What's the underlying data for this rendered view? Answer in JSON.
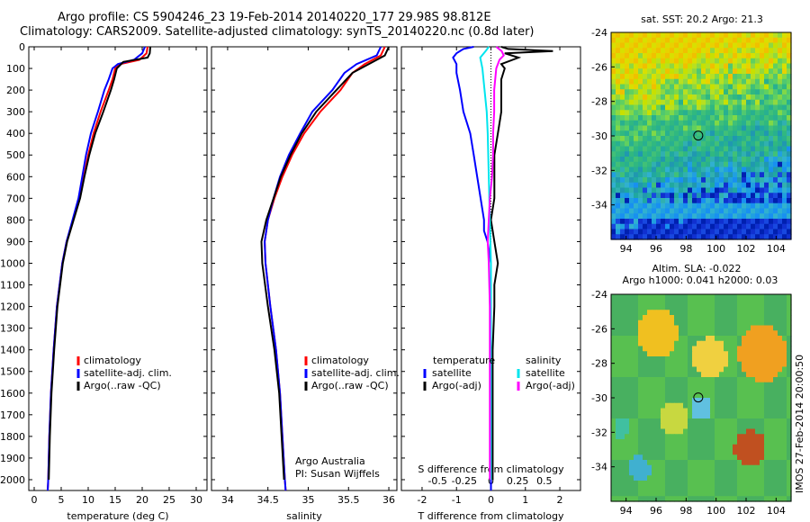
{
  "header": {
    "line1": "Argo profile: CS 5904246_23 19-Feb-2014 20140220_177 29.98S 98.812E",
    "line2": "Climatology: CARS2009. Satellite-adjusted climatology: synTS_20140220.nc (0.8d later)"
  },
  "colors": {
    "climatology": "#ff0000",
    "satellite": "#0000ff",
    "argo": "#000000",
    "salinity_satellite": "#00e5ee",
    "salinity_argo": "#ff00ff"
  },
  "chart_data": [
    {
      "type": "line",
      "name": "temperature",
      "xlabel": "temperature (deg C)",
      "ylabel": "",
      "xlim": [
        -1,
        32
      ],
      "ylim": [
        2050,
        0
      ],
      "xticks": [
        0,
        5,
        10,
        15,
        20,
        25,
        30
      ],
      "yticks": [
        0,
        100,
        200,
        300,
        400,
        500,
        600,
        700,
        800,
        900,
        1000,
        1100,
        1200,
        1300,
        1400,
        1500,
        1600,
        1700,
        1800,
        1900,
        2000
      ],
      "legend": [
        "climatology",
        "satellite-adj. clim.",
        "Argo(..raw -QC)"
      ],
      "series": [
        {
          "name": "climatology",
          "depth": [
            0,
            30,
            60,
            80,
            100,
            150,
            200,
            300,
            400,
            500,
            600,
            700,
            800,
            900,
            1000,
            1200,
            1400,
            1600,
            1800,
            2000,
            2050
          ],
          "values": [
            21.0,
            20.8,
            19.5,
            16.0,
            15.0,
            14.5,
            13.8,
            12.3,
            11.0,
            10.0,
            9.2,
            8.4,
            7.2,
            6.0,
            5.2,
            4.2,
            3.6,
            3.1,
            2.8,
            2.6,
            2.5
          ]
        },
        {
          "name": "satellite-adj. clim.",
          "depth": [
            0,
            30,
            60,
            80,
            100,
            150,
            200,
            300,
            400,
            500,
            600,
            700,
            800,
            900,
            1000,
            1200,
            1400,
            1600,
            1800,
            2000,
            2050
          ],
          "values": [
            20.5,
            20.0,
            18.5,
            15.5,
            14.5,
            13.8,
            13.0,
            11.8,
            10.5,
            9.6,
            8.9,
            8.2,
            7.1,
            6.0,
            5.2,
            4.2,
            3.6,
            3.1,
            2.8,
            2.6,
            2.5
          ]
        },
        {
          "name": "Argo(..raw -QC)",
          "depth": [
            0,
            30,
            50,
            70,
            100,
            150,
            200,
            300,
            400,
            500,
            600,
            700,
            800,
            900,
            1000,
            1200,
            1400,
            1600,
            1800,
            2000
          ],
          "values": [
            21.5,
            21.4,
            21.0,
            16.5,
            15.3,
            14.8,
            14.2,
            12.8,
            11.3,
            10.2,
            9.3,
            8.5,
            7.3,
            6.1,
            5.3,
            4.3,
            3.7,
            3.2,
            2.9,
            2.7
          ]
        }
      ]
    },
    {
      "type": "line",
      "name": "salinity",
      "xlabel": "salinity",
      "xlim": [
        33.8,
        36.1
      ],
      "ylim": [
        2050,
        0
      ],
      "xticks": [
        34,
        34.5,
        35,
        35.5,
        36
      ],
      "legend": [
        "climatology",
        "satellite-adj. clim.",
        "Argo(..raw -QC)"
      ],
      "annotations": [
        "Argo Australia",
        "PI: Susan Wijffels"
      ],
      "series": [
        {
          "name": "climatology",
          "depth": [
            0,
            40,
            80,
            120,
            200,
            300,
            400,
            500,
            600,
            700,
            800,
            900,
            1000,
            1200,
            1400,
            1600,
            1800,
            2000,
            2050
          ],
          "values": [
            35.95,
            35.9,
            35.7,
            35.55,
            35.4,
            35.15,
            34.95,
            34.8,
            34.68,
            34.58,
            34.5,
            34.46,
            34.47,
            34.53,
            34.6,
            34.65,
            34.68,
            34.71,
            34.72
          ]
        },
        {
          "name": "satellite-adj. clim.",
          "depth": [
            0,
            40,
            80,
            120,
            200,
            300,
            400,
            500,
            600,
            700,
            800,
            900,
            1000,
            1200,
            1400,
            1600,
            1800,
            2000,
            2050
          ],
          "values": [
            35.9,
            35.85,
            35.6,
            35.45,
            35.3,
            35.05,
            34.9,
            34.76,
            34.65,
            34.57,
            34.5,
            34.46,
            34.47,
            34.53,
            34.6,
            34.65,
            34.68,
            34.71,
            34.72
          ]
        },
        {
          "name": "Argo(..raw -QC)",
          "depth": [
            0,
            40,
            80,
            120,
            200,
            300,
            400,
            500,
            600,
            700,
            800,
            900,
            1000,
            1200,
            1400,
            1600,
            1800,
            2000
          ],
          "values": [
            36.0,
            35.95,
            35.75,
            35.55,
            35.35,
            35.1,
            34.92,
            34.78,
            34.66,
            34.57,
            34.48,
            34.42,
            34.43,
            34.5,
            34.58,
            34.64,
            34.67,
            34.7
          ]
        }
      ]
    },
    {
      "type": "line",
      "name": "difference",
      "xlabel": "T difference from climatology",
      "x2label": "S difference from climatology",
      "xlim": [
        -2.6,
        2.6
      ],
      "ylim": [
        2050,
        0
      ],
      "xticks": [
        -2,
        -1,
        0,
        1,
        2
      ],
      "x2ticks": [
        "-0.5",
        "-0.25",
        "0",
        "0.25",
        "0.5"
      ],
      "x2tick_values": [
        -0.5,
        -0.25,
        0,
        0.25,
        0.5
      ],
      "legend_titles": [
        "temperature",
        "salinity"
      ],
      "legend": [
        "satellite",
        "Argo(-adj)",
        "satellite",
        "Argo(-adj)"
      ],
      "series": [
        {
          "name": "temperature satellite",
          "depth": [
            0,
            10,
            30,
            50,
            80,
            120,
            200,
            300,
            400,
            500,
            600,
            700,
            800,
            850,
            900,
            1000,
            1100,
            1200,
            1400,
            1600,
            1800,
            2000,
            2050
          ],
          "values": [
            -0.5,
            -0.8,
            -1.0,
            -1.1,
            -1.0,
            -1.0,
            -0.9,
            -0.8,
            -0.6,
            -0.5,
            -0.4,
            -0.3,
            -0.2,
            -0.2,
            -0.1,
            0.0,
            0.0,
            0.0,
            0.0,
            0.0,
            0.0,
            0.0,
            0.0
          ]
        },
        {
          "name": "temperature Argo(-adj)",
          "depth": [
            0,
            10,
            20,
            30,
            50,
            80,
            100,
            150,
            200,
            300,
            400,
            500,
            600,
            700,
            800,
            900,
            1000,
            1100,
            1200,
            1400,
            1600,
            1800,
            2000
          ],
          "values": [
            0.3,
            0.5,
            1.8,
            0.4,
            0.8,
            0.3,
            0.4,
            0.3,
            0.3,
            0.3,
            0.2,
            0.1,
            0.1,
            0.1,
            0.0,
            0.1,
            0.2,
            0.1,
            0.1,
            0.05,
            0.05,
            0.05,
            0.05
          ]
        },
        {
          "name": "salinity satellite",
          "depth": [
            0,
            20,
            50,
            100,
            200,
            300,
            400,
            600,
            800,
            1000,
            1200,
            1400,
            1600,
            1800,
            2000
          ],
          "values": [
            -0.02,
            -0.05,
            -0.1,
            -0.08,
            -0.06,
            -0.04,
            -0.03,
            -0.02,
            -0.01,
            0.0,
            0.0,
            0.0,
            0.0,
            0.0,
            0.0
          ]
        },
        {
          "name": "salinity Argo(-adj)",
          "depth": [
            0,
            20,
            40,
            60,
            100,
            200,
            300,
            400,
            500,
            600,
            700,
            800,
            900,
            1000,
            1200,
            1400,
            1600,
            1800,
            2000
          ],
          "values": [
            0.05,
            0.1,
            0.12,
            0.08,
            0.05,
            0.03,
            0.03,
            0.02,
            0.02,
            0.01,
            -0.01,
            -0.02,
            -0.03,
            -0.02,
            -0.01,
            -0.01,
            -0.01,
            -0.01,
            -0.01
          ]
        }
      ]
    },
    {
      "type": "heatmap",
      "name": "sst-map",
      "title": "sat. SST: 20.2 Argo: 21.3",
      "xlim": [
        93,
        105
      ],
      "ylim": [
        -36,
        -24
      ],
      "xticks": [
        94,
        96,
        98,
        100,
        102,
        104
      ],
      "yticks": [
        -24,
        -26,
        -28,
        -30,
        -32,
        -34
      ],
      "marker": {
        "lon": 98.812,
        "lat": -29.98
      }
    },
    {
      "type": "heatmap",
      "name": "sla-map",
      "title_line1": "Altim. SLA: -0.022",
      "title_line2": "Argo h1000: 0.041 h2000: 0.03",
      "xlim": [
        93,
        105
      ],
      "ylim": [
        -36,
        -24
      ],
      "xticks": [
        94,
        96,
        98,
        100,
        102,
        104
      ],
      "yticks": [
        -24,
        -26,
        -28,
        -30,
        -32,
        -34
      ],
      "marker": {
        "lon": 98.812,
        "lat": -29.98
      }
    }
  ],
  "watermark": "IMOS 27-Feb-2014 20:00:50"
}
